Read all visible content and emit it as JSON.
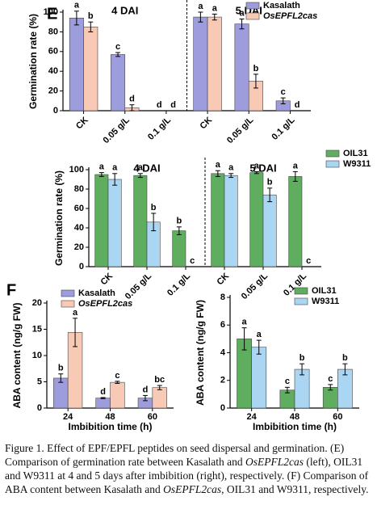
{
  "chart_data": [
    {
      "type": "bar",
      "panel_label": "E",
      "ylabel": "Germination rate (%)",
      "categories": [
        "CK",
        "0.05 g/L",
        "0.1 g/L",
        "CK",
        "0.05 g/L",
        "0.1 g/L"
      ],
      "groups": [
        "4 DAI",
        "5 DAI"
      ],
      "series": [
        {
          "name": "Kasalath",
          "color": "#9d9ddd",
          "values": [
            94,
            57,
            0,
            95,
            88,
            10
          ],
          "errors": [
            7,
            2,
            0,
            5,
            5,
            3
          ],
          "letters": [
            "a",
            "c",
            "d",
            "a",
            "a",
            "c"
          ]
        },
        {
          "name": "OsEPFL2cas",
          "italic": true,
          "color": "#f8cab6",
          "values": [
            85,
            3,
            0,
            95,
            30,
            0
          ],
          "errors": [
            5,
            3,
            0,
            3,
            7,
            0
          ],
          "letters": [
            "b",
            "d",
            "d",
            "a",
            "b",
            "d"
          ]
        }
      ],
      "ylim": [
        0,
        100
      ],
      "yticks": [
        0,
        20,
        40,
        60,
        80,
        100
      ],
      "legend": "upper right",
      "rotate_labels": true
    },
    {
      "type": "bar",
      "ylabel": "Germination rate (%)",
      "categories": [
        "CK",
        "0.05 g/L",
        "0.1 g/L",
        "CK",
        "0.05 g/L",
        "0.1 g/L"
      ],
      "groups": [
        "4 DAI",
        "5 DAI"
      ],
      "series": [
        {
          "name": "OIL31",
          "color": "#5fae5f",
          "values": [
            95,
            94,
            37,
            96,
            97,
            93
          ],
          "errors": [
            2,
            2,
            4,
            3,
            1,
            5
          ],
          "letters": [
            "a",
            "a",
            "b",
            "a",
            "a",
            "a"
          ]
        },
        {
          "name": "W9311",
          "color": "#abd6f3",
          "values": [
            90,
            46,
            0,
            94,
            74,
            0
          ],
          "errors": [
            6,
            9,
            0,
            2,
            7,
            0
          ],
          "letters": [
            "a",
            "b",
            "c",
            "a",
            "b",
            "c"
          ]
        }
      ],
      "ylim": [
        0,
        100
      ],
      "yticks": [
        0,
        20,
        40,
        60,
        80,
        100
      ],
      "legend": "right",
      "rotate_labels": true
    },
    {
      "type": "bar",
      "panel_label": "F",
      "ylabel": "ABA content (ng/g FW)",
      "xlabel": "Imbibition time (h)",
      "categories": [
        "24",
        "48",
        "60"
      ],
      "series": [
        {
          "name": "Kasalath",
          "color": "#9d9ddd",
          "values": [
            5.7,
            1.9,
            1.9
          ],
          "errors": [
            0.8,
            0.1,
            0.5
          ],
          "letters": [
            "b",
            "d",
            "d"
          ]
        },
        {
          "name": "OsEPFL2cas",
          "italic": true,
          "color": "#f8cab6",
          "values": [
            14.4,
            4.9,
            3.9
          ],
          "errors": [
            2.7,
            0.2,
            0.4
          ],
          "letters": [
            "a",
            "c",
            "bc"
          ]
        }
      ],
      "ylim": [
        0,
        20
      ],
      "yticks": [
        0,
        5,
        10,
        15,
        20
      ],
      "legend": "upper left"
    },
    {
      "type": "bar",
      "ylabel": "ABA content (ng/g FW)",
      "xlabel": "Imbibition time (h)",
      "categories": [
        "24",
        "48",
        "60"
      ],
      "series": [
        {
          "name": "OIL31",
          "color": "#5fae5f",
          "values": [
            5.0,
            1.3,
            1.5
          ],
          "errors": [
            0.8,
            0.2,
            0.2
          ],
          "letters": [
            "a",
            "c",
            "c"
          ]
        },
        {
          "name": "W9311",
          "color": "#abd6f3",
          "values": [
            4.4,
            2.8,
            2.8
          ],
          "errors": [
            0.5,
            0.4,
            0.4
          ],
          "letters": [
            "a",
            "b",
            "b"
          ]
        }
      ],
      "ylim": [
        0,
        8
      ],
      "yticks": [
        0,
        2,
        4,
        6,
        8
      ],
      "legend": "upper right"
    }
  ],
  "caption": [
    {
      "text": "Figure 1. Effect of EPF/EPFL peptides on seed dispersal and germination. (E) Comparison of germination rate between Kasalath and "
    },
    {
      "text": "OsEPFL2cas",
      "italic": true
    },
    {
      "text": " (left), OIL31 and W9311 at 4 and 5 days after imbibition (right), respectively. (F) Comparison of ABA content between Kasalath and "
    },
    {
      "text": "OsEPFL2cas",
      "italic": true
    },
    {
      "text": ", OIL31 and W9311, respectively."
    }
  ]
}
